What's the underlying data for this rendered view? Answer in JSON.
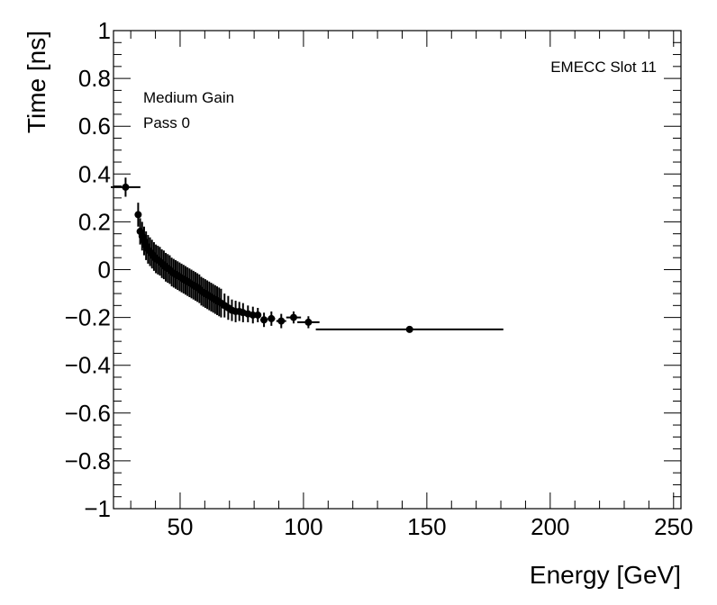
{
  "chart_data": {
    "type": "scatter",
    "title": "",
    "xlabel": "Energy [GeV]",
    "ylabel": "Time [ns]",
    "xlim": [
      23,
      253
    ],
    "ylim": [
      -1,
      1
    ],
    "x_major_ticks": [
      50,
      100,
      150,
      200,
      250
    ],
    "x_tick_labels": [
      "50",
      "100",
      "150",
      "200",
      "250"
    ],
    "y_major_ticks": [
      -1,
      -0.8,
      -0.6,
      -0.4,
      -0.2,
      0,
      0.2,
      0.4,
      0.6,
      0.8,
      1
    ],
    "y_tick_labels": [
      "−1",
      "−0.8",
      "−0.6",
      "−0.4",
      "−0.2",
      "0",
      "0.2",
      "0.4",
      "0.6",
      "0.8",
      "1"
    ],
    "grid": false,
    "annotations": {
      "top_right": "EMECC Slot 11",
      "gain": "Medium Gain",
      "pass": "Pass 0"
    },
    "series": [
      {
        "name": "Medium Gain",
        "x": [
          27.9,
          33.0,
          33.8,
          34.6,
          35.4,
          36.2,
          37.0,
          37.8,
          38.6,
          39.4,
          40.2,
          41.0,
          41.8,
          42.6,
          43.4,
          44.2,
          45.0,
          45.8,
          46.6,
          47.4,
          48.2,
          49.0,
          49.8,
          50.6,
          51.4,
          52.2,
          53.0,
          53.8,
          54.6,
          55.4,
          56.2,
          57.0,
          57.8,
          58.6,
          59.4,
          60.2,
          61.0,
          61.8,
          62.6,
          63.4,
          64.2,
          65.0,
          65.8,
          66.6,
          68.0,
          69.5,
          71.0,
          72.5,
          74.0,
          75.5,
          77.5,
          79.5,
          81.5,
          84.0,
          87.0,
          91.0,
          96.0,
          102.0,
          143.0
        ],
        "y": [
          0.345,
          0.23,
          0.16,
          0.14,
          0.12,
          0.1,
          0.085,
          0.075,
          0.065,
          0.055,
          0.045,
          0.04,
          0.035,
          0.025,
          0.02,
          0.01,
          0.005,
          0.0,
          -0.01,
          -0.015,
          -0.02,
          -0.025,
          -0.03,
          -0.035,
          -0.04,
          -0.045,
          -0.05,
          -0.055,
          -0.06,
          -0.065,
          -0.07,
          -0.075,
          -0.08,
          -0.09,
          -0.095,
          -0.1,
          -0.105,
          -0.11,
          -0.115,
          -0.12,
          -0.125,
          -0.13,
          -0.135,
          -0.14,
          -0.15,
          -0.16,
          -0.17,
          -0.175,
          -0.175,
          -0.18,
          -0.185,
          -0.19,
          -0.19,
          -0.21,
          -0.205,
          -0.215,
          -0.2,
          -0.22,
          -0.25
        ],
        "xerr": [
          6.0,
          0.4,
          0.4,
          0.4,
          0.4,
          0.4,
          0.4,
          0.4,
          0.4,
          0.4,
          0.4,
          0.4,
          0.4,
          0.4,
          0.4,
          0.4,
          0.4,
          0.4,
          0.4,
          0.4,
          0.4,
          0.4,
          0.4,
          0.4,
          0.4,
          0.4,
          0.4,
          0.4,
          0.4,
          0.4,
          0.4,
          0.4,
          0.4,
          0.4,
          0.4,
          0.4,
          0.4,
          0.4,
          0.4,
          0.4,
          0.4,
          0.4,
          0.4,
          0.4,
          0.7,
          0.7,
          0.7,
          0.7,
          0.7,
          0.7,
          1.0,
          1.0,
          1.0,
          1.5,
          1.5,
          2.0,
          3.0,
          4.5,
          38.0
        ],
        "yerr": [
          0.04,
          0.05,
          0.055,
          0.06,
          0.06,
          0.06,
          0.06,
          0.06,
          0.06,
          0.06,
          0.06,
          0.06,
          0.06,
          0.06,
          0.06,
          0.06,
          0.06,
          0.06,
          0.06,
          0.06,
          0.06,
          0.06,
          0.06,
          0.06,
          0.06,
          0.06,
          0.06,
          0.06,
          0.06,
          0.06,
          0.06,
          0.06,
          0.06,
          0.06,
          0.06,
          0.06,
          0.06,
          0.06,
          0.06,
          0.06,
          0.06,
          0.06,
          0.06,
          0.06,
          0.05,
          0.05,
          0.045,
          0.045,
          0.04,
          0.04,
          0.035,
          0.035,
          0.03,
          0.03,
          0.03,
          0.03,
          0.025,
          0.025,
          0.01
        ]
      }
    ]
  }
}
